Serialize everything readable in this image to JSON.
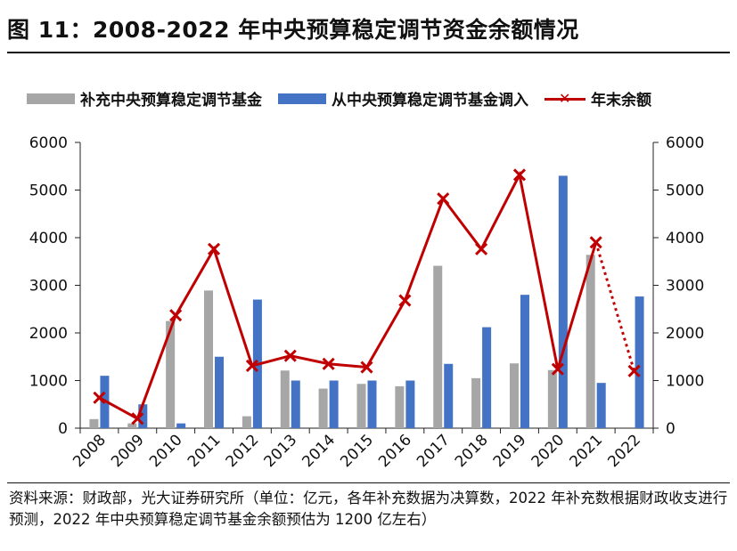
{
  "title": "图 11：2008-2022 年中央预算稳定调节资金余额情况",
  "source_note": "资料来源：财政部，光大证券研究所（单位：亿元，各年补充数据为决算数，2022 年补充数根据财政收支进行预测，2022 年中央预算稳定调节基金余额预估为 1200 亿左右）",
  "colors": {
    "gray": "#a6a6a6",
    "blue": "#4472c4",
    "red": "#c00000"
  },
  "chart_data": {
    "type": "bar",
    "categories": [
      "2008",
      "2009",
      "2010",
      "2011",
      "2012",
      "2013",
      "2014",
      "2015",
      "2016",
      "2017",
      "2018",
      "2019",
      "2020",
      "2021",
      "2022"
    ],
    "series": [
      {
        "name": "补充中央预算稳定调节基金",
        "kind": "bar",
        "color": "#a6a6a6",
        "values": [
          190,
          100,
          2250,
          2890,
          250,
          1210,
          830,
          930,
          880,
          3410,
          1050,
          1360,
          1220,
          3640,
          0
        ]
      },
      {
        "name": "从中央预算稳定调节基金调入",
        "kind": "bar",
        "color": "#4472c4",
        "values": [
          1100,
          500,
          100,
          1500,
          2700,
          1000,
          1000,
          1000,
          1000,
          1350,
          2120,
          2800,
          5300,
          950,
          2765
        ]
      },
      {
        "name": "年末余额",
        "kind": "line",
        "color": "#c00000",
        "values": [
          640,
          200,
          2370,
          3760,
          1310,
          1520,
          1350,
          1280,
          2680,
          4820,
          3760,
          5320,
          1240,
          3900,
          1200
        ],
        "estimated_last_segment": true
      }
    ],
    "ylim": [
      0,
      6000
    ],
    "yticks": [
      0,
      1000,
      2000,
      3000,
      4000,
      5000,
      6000
    ],
    "legend_position": "top",
    "grid": false
  }
}
